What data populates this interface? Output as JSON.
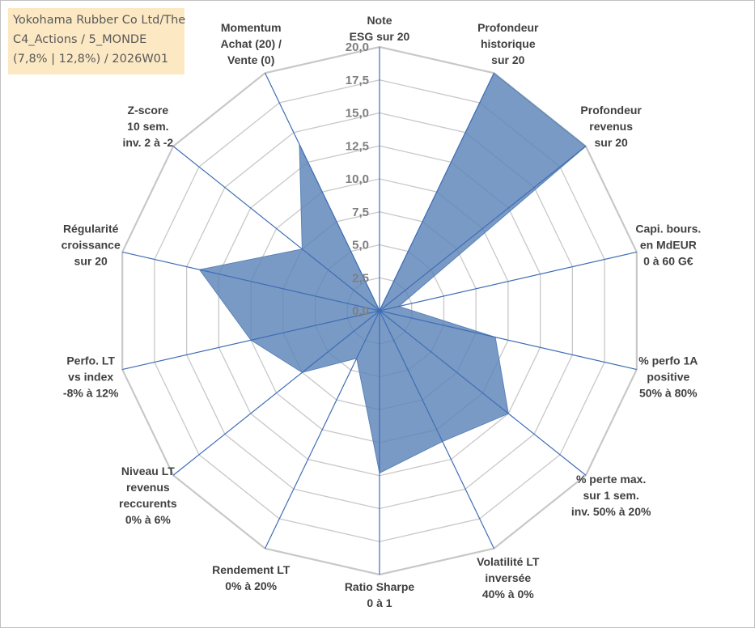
{
  "chart_data": {
    "type": "radar",
    "title_lines": [
      "Yokohama Rubber Co Ltd/The",
      "C4_Actions / 5_MONDE",
      "(7,8% | 12,8%) / 2026W01"
    ],
    "rmin": 0,
    "rmax": 20,
    "tick_step": 2.5,
    "tick_labels": [
      "0,0",
      "2,5",
      "5,0",
      "7,5",
      "10,0",
      "12,5",
      "15,0",
      "17,5",
      "20,0"
    ],
    "axes": [
      {
        "label": [
          "Note",
          "ESG sur 20"
        ]
      },
      {
        "label": [
          "Profondeur",
          "historique",
          "sur 20"
        ]
      },
      {
        "label": [
          "Profondeur",
          "revenus",
          "sur 20"
        ]
      },
      {
        "label": [
          "Capi. bours.",
          "en MdEUR",
          "0 à 60 G€"
        ]
      },
      {
        "label": [
          "% perfo 1A",
          "positive",
          "50% à 80%"
        ]
      },
      {
        "label": [
          "% perte max.",
          "sur 1 sem.",
          "inv. 50% à 20%"
        ]
      },
      {
        "label": [
          "Volatilité LT",
          "inversée",
          "40% à 0%"
        ]
      },
      {
        "label": [
          "Ratio Sharpe",
          "0 à 1"
        ]
      },
      {
        "label": [
          "Rendement LT",
          "0% à 20%"
        ]
      },
      {
        "label": [
          "Niveau LT",
          "revenus",
          "reccurents",
          "0% à 6%"
        ]
      },
      {
        "label": [
          "Perfo. LT",
          "vs index",
          "-8% à 12%"
        ]
      },
      {
        "label": [
          "Régularité",
          "croissance",
          "sur 20"
        ]
      },
      {
        "label": [
          "Z-score",
          "10 sem.",
          "inv. 2 à -2"
        ]
      },
      {
        "label": [
          "Momentum",
          "Achat (20) /",
          "Vente (0)"
        ]
      }
    ],
    "series": [
      {
        "name": "Yokohama Rubber Co Ltd/The",
        "color": "#5b84b8",
        "values": [
          0,
          20,
          20,
          1.5,
          9,
          12.5,
          11,
          12.3,
          4,
          7.5,
          10,
          14,
          7.5,
          14
        ]
      }
    ]
  }
}
